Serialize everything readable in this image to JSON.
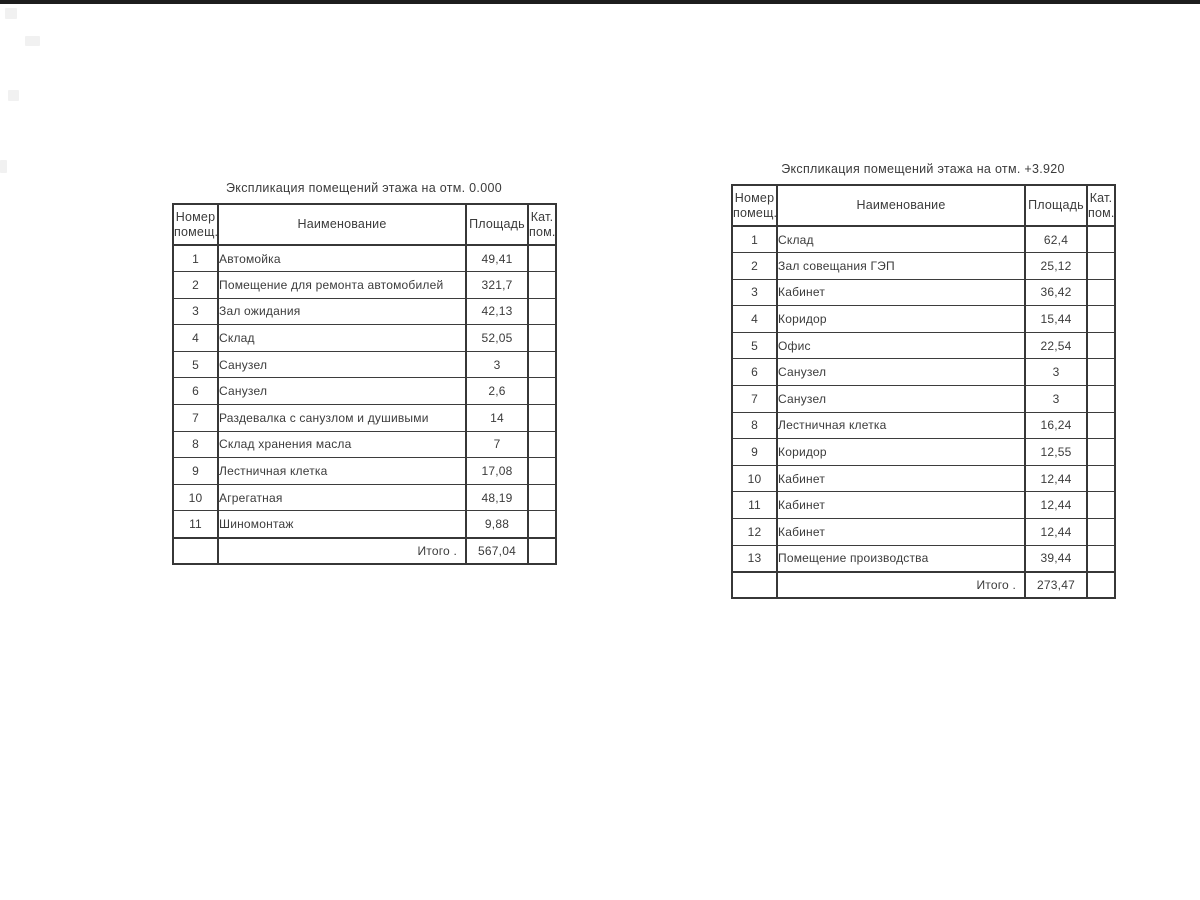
{
  "artifacts": {
    "top_bar_color": "#1d1d1d"
  },
  "tables": [
    {
      "title": "Экспликация помещений этажа на отм. 0.000",
      "columns": [
        "Номер\nпомещ.",
        "Наименование",
        "Площадь",
        "Кат.\nпом."
      ],
      "rows": [
        {
          "num": "1",
          "name": "Автомойка",
          "area": "49,41",
          "cat": ""
        },
        {
          "num": "2",
          "name": "Помещение для ремонта автомобилей",
          "area": "321,7",
          "cat": ""
        },
        {
          "num": "3",
          "name": "Зал ожидания",
          "area": "42,13",
          "cat": ""
        },
        {
          "num": "4",
          "name": "Склад",
          "area": "52,05",
          "cat": ""
        },
        {
          "num": "5",
          "name": "Санузел",
          "area": "3",
          "cat": ""
        },
        {
          "num": "6",
          "name": "Санузел",
          "area": "2,6",
          "cat": ""
        },
        {
          "num": "7",
          "name": "Раздевалка с санузлом и душивыми",
          "area": "14",
          "cat": ""
        },
        {
          "num": "8",
          "name": "Склад хранения масла",
          "area": "7",
          "cat": ""
        },
        {
          "num": "9",
          "name": "Лестничная клетка",
          "area": "17,08",
          "cat": ""
        },
        {
          "num": "10",
          "name": "Агрегатная",
          "area": "48,19",
          "cat": ""
        },
        {
          "num": "11",
          "name": "Шиномонтаж",
          "area": "9,88",
          "cat": ""
        }
      ],
      "total_label": "Итого .",
      "total_value": "567,04"
    },
    {
      "title": "Экспликация помещений этажа на отм. +3.920",
      "columns": [
        "Номер\nпомещ.",
        "Наименование",
        "Площадь",
        "Кат.\nпом."
      ],
      "rows": [
        {
          "num": "1",
          "name": "Склад",
          "area": "62,4",
          "cat": ""
        },
        {
          "num": "2",
          "name": "Зал совещания ГЭП",
          "area": "25,12",
          "cat": ""
        },
        {
          "num": "3",
          "name": "Кабинет",
          "area": "36,42",
          "cat": ""
        },
        {
          "num": "4",
          "name": "Коридор",
          "area": "15,44",
          "cat": ""
        },
        {
          "num": "5",
          "name": "Офис",
          "area": "22,54",
          "cat": ""
        },
        {
          "num": "6",
          "name": "Санузел",
          "area": "3",
          "cat": ""
        },
        {
          "num": "7",
          "name": "Санузел",
          "area": "3",
          "cat": ""
        },
        {
          "num": "8",
          "name": "Лестничная клетка",
          "area": "16,24",
          "cat": ""
        },
        {
          "num": "9",
          "name": "Коридор",
          "area": "12,55",
          "cat": ""
        },
        {
          "num": "10",
          "name": "Кабинет",
          "area": "12,44",
          "cat": ""
        },
        {
          "num": "11",
          "name": "Кабинет",
          "area": "12,44",
          "cat": ""
        },
        {
          "num": "12",
          "name": "Кабинет",
          "area": "12,44",
          "cat": ""
        },
        {
          "num": "13",
          "name": "Помещение производства",
          "area": "39,44",
          "cat": ""
        }
      ],
      "total_label": "Итого .",
      "total_value": "273,47"
    }
  ]
}
